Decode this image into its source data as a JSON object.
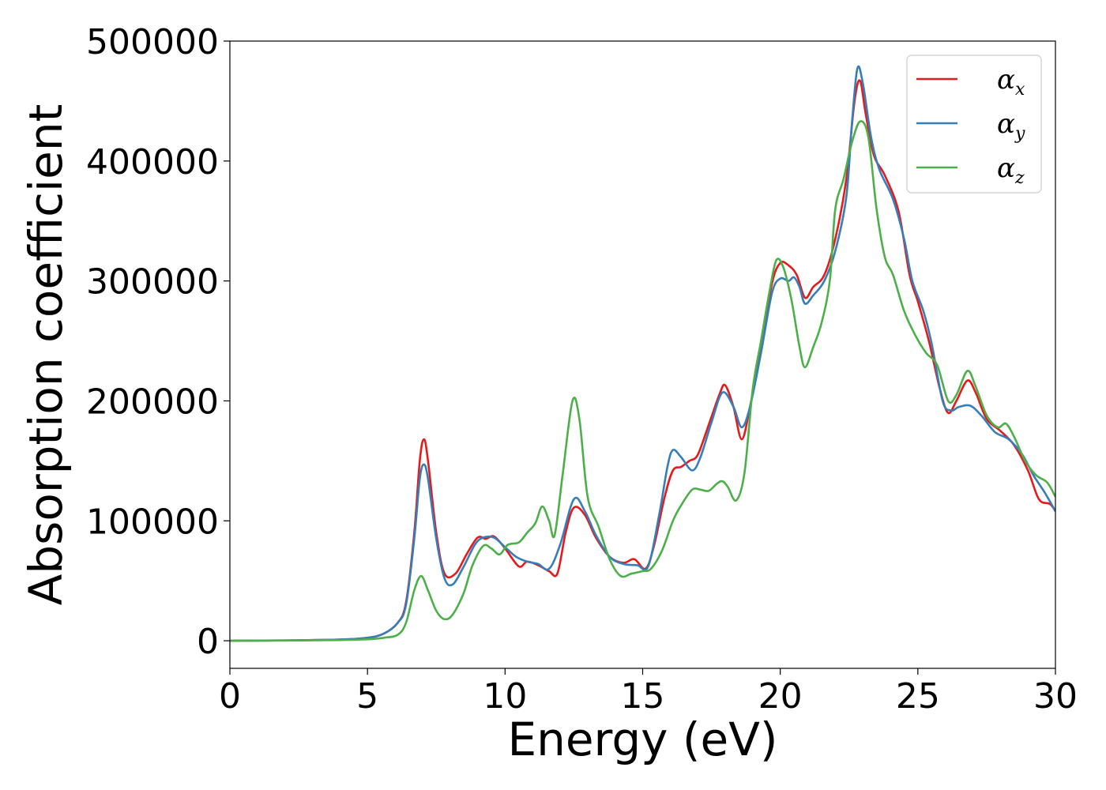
{
  "chart_data": {
    "type": "line",
    "title": "",
    "xlabel": "Energy (eV)",
    "ylabel": "Absorption coefficient",
    "xlim": [
      0,
      30
    ],
    "ylim": [
      -23000,
      500000
    ],
    "xticks": [
      "0",
      "5",
      "10",
      "15",
      "20",
      "25",
      "30"
    ],
    "yticks": [
      "0",
      "100000",
      "200000",
      "300000",
      "400000",
      "500000"
    ],
    "grid": false,
    "legend_position": "top-right",
    "series": [
      {
        "name": "αx",
        "symbol": "α",
        "subscript": "x",
        "color": "#e41a1c",
        "points": [
          [
            0,
            0
          ],
          [
            2,
            300
          ],
          [
            4,
            1000
          ],
          [
            5,
            2500
          ],
          [
            5.6,
            6000
          ],
          [
            6.1,
            15000
          ],
          [
            6.4,
            32000
          ],
          [
            6.7,
            90000
          ],
          [
            6.9,
            150000
          ],
          [
            7.05,
            168000
          ],
          [
            7.2,
            150000
          ],
          [
            7.5,
            90000
          ],
          [
            7.8,
            56000
          ],
          [
            8.2,
            56000
          ],
          [
            8.6,
            72000
          ],
          [
            9,
            86000
          ],
          [
            9.3,
            85000
          ],
          [
            9.6,
            87000
          ],
          [
            10,
            77000
          ],
          [
            10.5,
            62000
          ],
          [
            10.8,
            66000
          ],
          [
            11.2,
            63000
          ],
          [
            11.6,
            58000
          ],
          [
            11.9,
            56000
          ],
          [
            12.2,
            90000
          ],
          [
            12.5,
            111000
          ],
          [
            12.9,
            105000
          ],
          [
            13.3,
            86000
          ],
          [
            13.8,
            70000
          ],
          [
            14.3,
            65000
          ],
          [
            14.7,
            68000
          ],
          [
            15.1,
            60000
          ],
          [
            15.4,
            78000
          ],
          [
            15.8,
            120000
          ],
          [
            16.1,
            142000
          ],
          [
            16.4,
            145000
          ],
          [
            16.7,
            150000
          ],
          [
            17,
            155000
          ],
          [
            17.4,
            180000
          ],
          [
            17.8,
            206000
          ],
          [
            18,
            213000
          ],
          [
            18.3,
            195000
          ],
          [
            18.6,
            168000
          ],
          [
            18.9,
            195000
          ],
          [
            19.3,
            245000
          ],
          [
            19.7,
            298000
          ],
          [
            20,
            315000
          ],
          [
            20.3,
            313000
          ],
          [
            20.6,
            305000
          ],
          [
            20.9,
            286000
          ],
          [
            21.2,
            295000
          ],
          [
            21.6,
            305000
          ],
          [
            22,
            335000
          ],
          [
            22.4,
            385000
          ],
          [
            22.7,
            450000
          ],
          [
            22.9,
            467000
          ],
          [
            23.1,
            440000
          ],
          [
            23.4,
            405000
          ],
          [
            23.8,
            388000
          ],
          [
            24.3,
            358000
          ],
          [
            24.7,
            305000
          ],
          [
            25,
            283000
          ],
          [
            25.4,
            250000
          ],
          [
            25.8,
            210000
          ],
          [
            26.1,
            190000
          ],
          [
            26.4,
            200000
          ],
          [
            26.8,
            217000
          ],
          [
            27.1,
            207000
          ],
          [
            27.5,
            185000
          ],
          [
            28,
            175000
          ],
          [
            28.5,
            163000
          ],
          [
            29,
            142000
          ],
          [
            29.4,
            118000
          ],
          [
            29.8,
            114000
          ],
          [
            30,
            108000
          ]
        ]
      },
      {
        "name": "αy",
        "symbol": "α",
        "subscript": "y",
        "color": "#377eb8",
        "points": [
          [
            0,
            0
          ],
          [
            2,
            300
          ],
          [
            4,
            1000
          ],
          [
            5,
            2500
          ],
          [
            5.6,
            6000
          ],
          [
            6.1,
            15000
          ],
          [
            6.4,
            30000
          ],
          [
            6.7,
            85000
          ],
          [
            6.9,
            135000
          ],
          [
            7.05,
            147000
          ],
          [
            7.2,
            135000
          ],
          [
            7.5,
            85000
          ],
          [
            7.8,
            52000
          ],
          [
            8.1,
            47000
          ],
          [
            8.5,
            62000
          ],
          [
            8.9,
            80000
          ],
          [
            9.2,
            86000
          ],
          [
            9.6,
            86000
          ],
          [
            10,
            78000
          ],
          [
            10.4,
            70000
          ],
          [
            10.8,
            66000
          ],
          [
            11.2,
            64000
          ],
          [
            11.6,
            60000
          ],
          [
            12,
            80000
          ],
          [
            12.5,
            118000
          ],
          [
            12.9,
            108000
          ],
          [
            13.3,
            88000
          ],
          [
            13.8,
            70000
          ],
          [
            14.3,
            64000
          ],
          [
            14.8,
            63000
          ],
          [
            15.2,
            62000
          ],
          [
            15.6,
            105000
          ],
          [
            15.9,
            145000
          ],
          [
            16.1,
            159000
          ],
          [
            16.4,
            153000
          ],
          [
            16.8,
            142000
          ],
          [
            17.1,
            153000
          ],
          [
            17.5,
            182000
          ],
          [
            17.9,
            207000
          ],
          [
            18.3,
            195000
          ],
          [
            18.6,
            178000
          ],
          [
            18.9,
            195000
          ],
          [
            19.3,
            240000
          ],
          [
            19.7,
            290000
          ],
          [
            20,
            302000
          ],
          [
            20.3,
            300000
          ],
          [
            20.5,
            303000
          ],
          [
            20.7,
            295000
          ],
          [
            20.9,
            281000
          ],
          [
            21.2,
            288000
          ],
          [
            21.6,
            300000
          ],
          [
            22,
            325000
          ],
          [
            22.4,
            370000
          ],
          [
            22.6,
            430000
          ],
          [
            22.8,
            477000
          ],
          [
            23,
            465000
          ],
          [
            23.3,
            420000
          ],
          [
            23.6,
            393000
          ],
          [
            24.1,
            368000
          ],
          [
            24.5,
            335000
          ],
          [
            24.8,
            300000
          ],
          [
            25.2,
            275000
          ],
          [
            25.5,
            248000
          ],
          [
            25.9,
            200000
          ],
          [
            26.2,
            192000
          ],
          [
            26.5,
            195000
          ],
          [
            26.9,
            196000
          ],
          [
            27.3,
            188000
          ],
          [
            27.8,
            174000
          ],
          [
            28.3,
            168000
          ],
          [
            28.8,
            155000
          ],
          [
            29.2,
            138000
          ],
          [
            29.6,
            124000
          ],
          [
            30,
            108000
          ]
        ]
      },
      {
        "name": "αz",
        "symbol": "α",
        "subscript": "z",
        "color": "#4daf4a",
        "points": [
          [
            0,
            0
          ],
          [
            2,
            200
          ],
          [
            4,
            600
          ],
          [
            5,
            1200
          ],
          [
            5.6,
            2500
          ],
          [
            6.1,
            5000
          ],
          [
            6.4,
            15000
          ],
          [
            6.7,
            42000
          ],
          [
            6.95,
            54000
          ],
          [
            7.2,
            42000
          ],
          [
            7.5,
            25000
          ],
          [
            7.8,
            18000
          ],
          [
            8.1,
            22000
          ],
          [
            8.5,
            40000
          ],
          [
            8.8,
            62000
          ],
          [
            9.2,
            79000
          ],
          [
            9.5,
            77000
          ],
          [
            9.8,
            72000
          ],
          [
            10.1,
            80000
          ],
          [
            10.5,
            82000
          ],
          [
            10.8,
            90000
          ],
          [
            11.1,
            98000
          ],
          [
            11.35,
            112000
          ],
          [
            11.6,
            100000
          ],
          [
            11.8,
            88000
          ],
          [
            12.1,
            140000
          ],
          [
            12.45,
            200000
          ],
          [
            12.7,
            185000
          ],
          [
            13,
            120000
          ],
          [
            13.4,
            95000
          ],
          [
            13.8,
            68000
          ],
          [
            14.2,
            54000
          ],
          [
            14.6,
            56000
          ],
          [
            15,
            58000
          ],
          [
            15.3,
            60000
          ],
          [
            15.7,
            75000
          ],
          [
            16.1,
            100000
          ],
          [
            16.4,
            113000
          ],
          [
            16.8,
            126000
          ],
          [
            17.1,
            126000
          ],
          [
            17.4,
            125000
          ],
          [
            17.7,
            131000
          ],
          [
            17.9,
            133000
          ],
          [
            18.1,
            128000
          ],
          [
            18.4,
            117000
          ],
          [
            18.7,
            140000
          ],
          [
            19,
            210000
          ],
          [
            19.3,
            250000
          ],
          [
            19.6,
            290000
          ],
          [
            19.85,
            317000
          ],
          [
            20.1,
            312000
          ],
          [
            20.4,
            285000
          ],
          [
            20.7,
            245000
          ],
          [
            20.9,
            228000
          ],
          [
            21.2,
            245000
          ],
          [
            21.5,
            265000
          ],
          [
            21.8,
            300000
          ],
          [
            22,
            360000
          ],
          [
            22.3,
            385000
          ],
          [
            22.6,
            415000
          ],
          [
            22.9,
            433000
          ],
          [
            23.2,
            420000
          ],
          [
            23.5,
            360000
          ],
          [
            23.8,
            320000
          ],
          [
            24.1,
            305000
          ],
          [
            24.5,
            275000
          ],
          [
            24.9,
            255000
          ],
          [
            25.3,
            240000
          ],
          [
            25.7,
            230000
          ],
          [
            26.1,
            200000
          ],
          [
            26.4,
            205000
          ],
          [
            26.8,
            225000
          ],
          [
            27.1,
            212000
          ],
          [
            27.5,
            188000
          ],
          [
            27.9,
            178000
          ],
          [
            28.2,
            181000
          ],
          [
            28.5,
            170000
          ],
          [
            28.9,
            150000
          ],
          [
            29.3,
            138000
          ],
          [
            29.7,
            132000
          ],
          [
            30,
            120000
          ]
        ]
      }
    ]
  }
}
